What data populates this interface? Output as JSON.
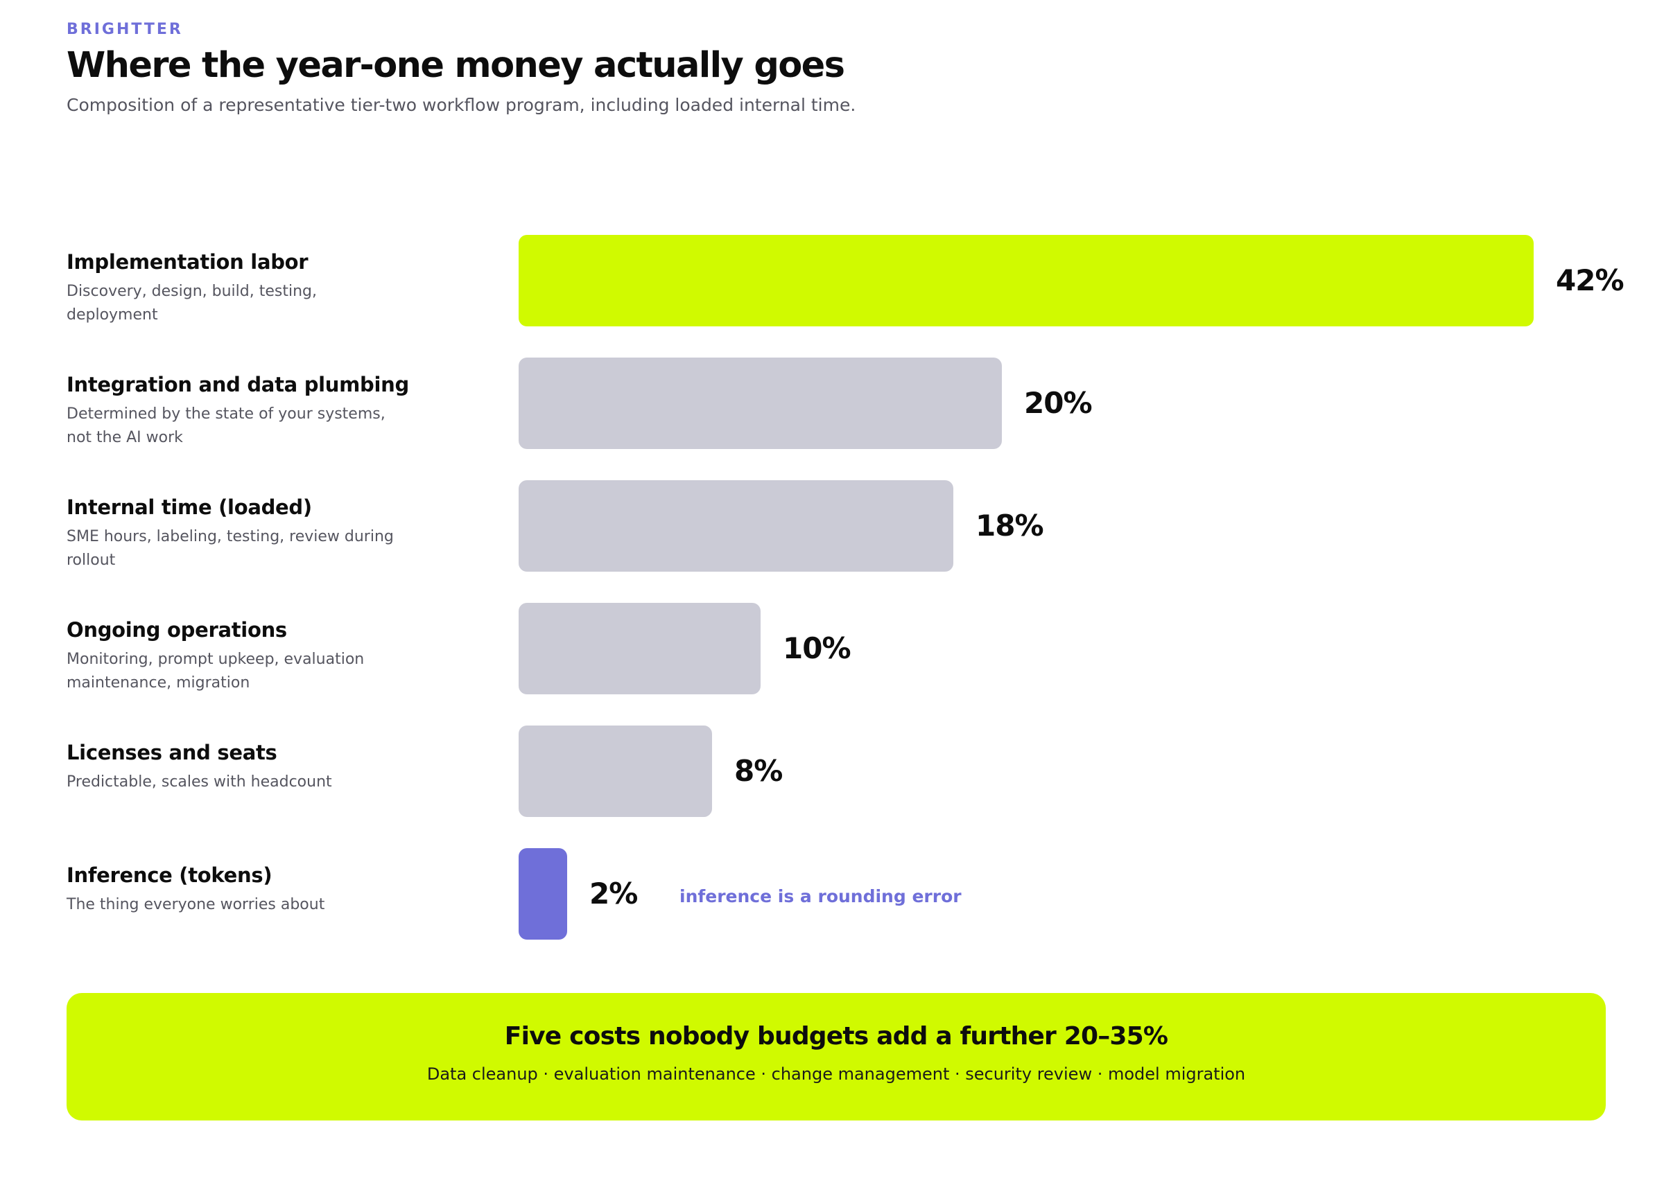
{
  "brand": "BRIGHTTER",
  "title": "Where the year-one money actually goes",
  "subtitle": "Composition of a representative tier-two workflow program, including loaded internal time.",
  "colors": {
    "accent_lime": "#d0fa00",
    "neutral_bar": "#cbcbd6",
    "accent_purple": "#6f6fd9",
    "text_dark": "#0d0d0d",
    "text_muted": "#55555f"
  },
  "chart_data": {
    "type": "bar",
    "orientation": "horizontal",
    "unit": "%",
    "xlim": [
      0,
      42
    ],
    "grid": false,
    "categories": [
      {
        "label": "Implementation labor",
        "description": "Discovery, design, build, testing, deployment",
        "value": 42,
        "value_label": "42%",
        "highlight": "lime"
      },
      {
        "label": "Integration and data plumbing",
        "description": "Determined by the state of your systems, not the AI work",
        "value": 20,
        "value_label": "20%",
        "highlight": "neutral"
      },
      {
        "label": "Internal time (loaded)",
        "description": "SME hours, labeling, testing, review during rollout",
        "value": 18,
        "value_label": "18%",
        "highlight": "neutral"
      },
      {
        "label": "Ongoing operations",
        "description": "Monitoring, prompt upkeep, evaluation maintenance, migration",
        "value": 10,
        "value_label": "10%",
        "highlight": "neutral"
      },
      {
        "label": "Licenses and seats",
        "description": "Predictable, scales with headcount",
        "value": 8,
        "value_label": "8%",
        "highlight": "neutral"
      },
      {
        "label": "Inference (tokens)",
        "description": "The thing everyone worries about",
        "value": 2,
        "value_label": "2%",
        "highlight": "purple",
        "annotation": "inference is a rounding error"
      }
    ]
  },
  "callout": {
    "title": "Five costs nobody budgets add a further 20–35%",
    "text": "Data cleanup · evaluation maintenance · change management · security review · model migration"
  }
}
